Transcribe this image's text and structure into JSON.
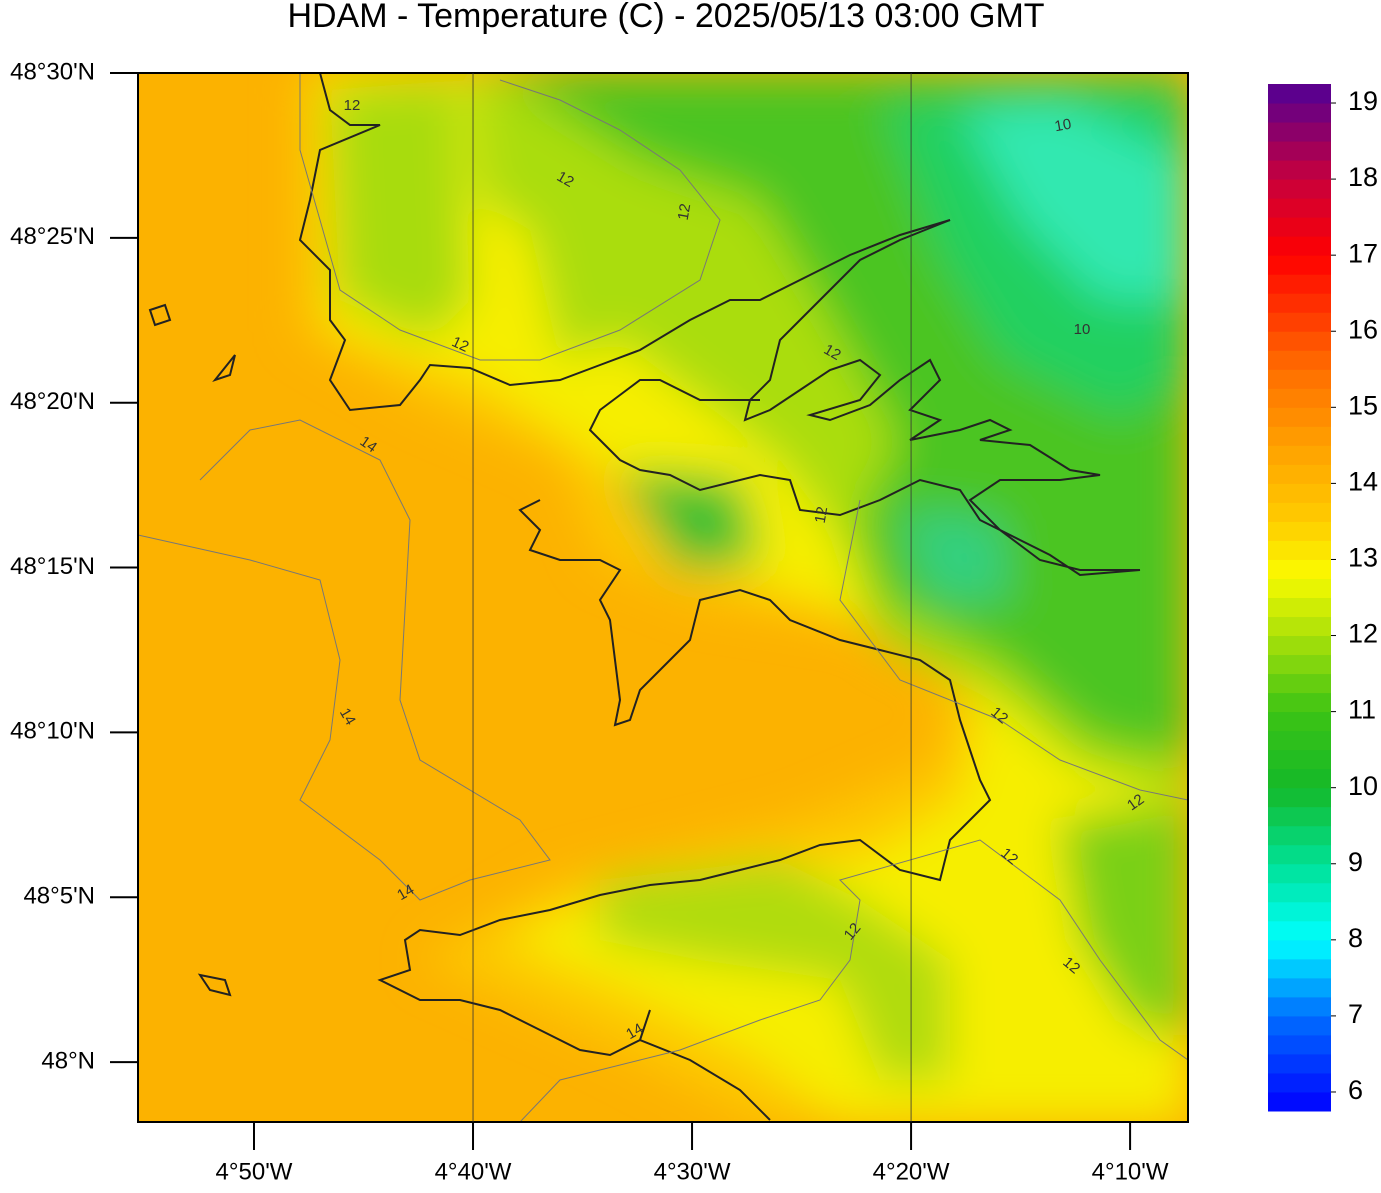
{
  "title": "HDAM - Temperature (C)  -  2025/05/13  03:00 GMT",
  "map": {
    "lat_range": [
      47.9697,
      48.5
    ],
    "lon_range": [
      -4.9216,
      -4.1226
    ],
    "lat_ticks": [
      {
        "value": 48.5,
        "label": "48°30'N"
      },
      {
        "value": 48.416667,
        "label": "48°25'N"
      },
      {
        "value": 48.333333,
        "label": "48°20'N"
      },
      {
        "value": 48.25,
        "label": "48°15'N"
      },
      {
        "value": 48.166667,
        "label": "48°10'N"
      },
      {
        "value": 48.083333,
        "label": "48°5'N"
      },
      {
        "value": 48.0,
        "label": "48°N"
      }
    ],
    "lon_ticks": [
      {
        "value": -4.833333,
        "label": "4°50'W"
      },
      {
        "value": -4.666667,
        "label": "4°40'W"
      },
      {
        "value": -4.5,
        "label": "4°30'W"
      },
      {
        "value": -4.333333,
        "label": "4°20'W"
      },
      {
        "value": -4.166667,
        "label": "4°10'W"
      }
    ],
    "meridians": [
      -4.666667,
      -4.333333
    ],
    "contour_labels": [
      12,
      12,
      12,
      10,
      12,
      10,
      12,
      14,
      12,
      12,
      14,
      12,
      12,
      14,
      12,
      12,
      14
    ]
  },
  "colorbar": {
    "range": [
      5.75,
      19.25
    ],
    "ticks": [
      6,
      7,
      8,
      9,
      10,
      11,
      12,
      13,
      14,
      15,
      16,
      17,
      18,
      19
    ]
  }
}
